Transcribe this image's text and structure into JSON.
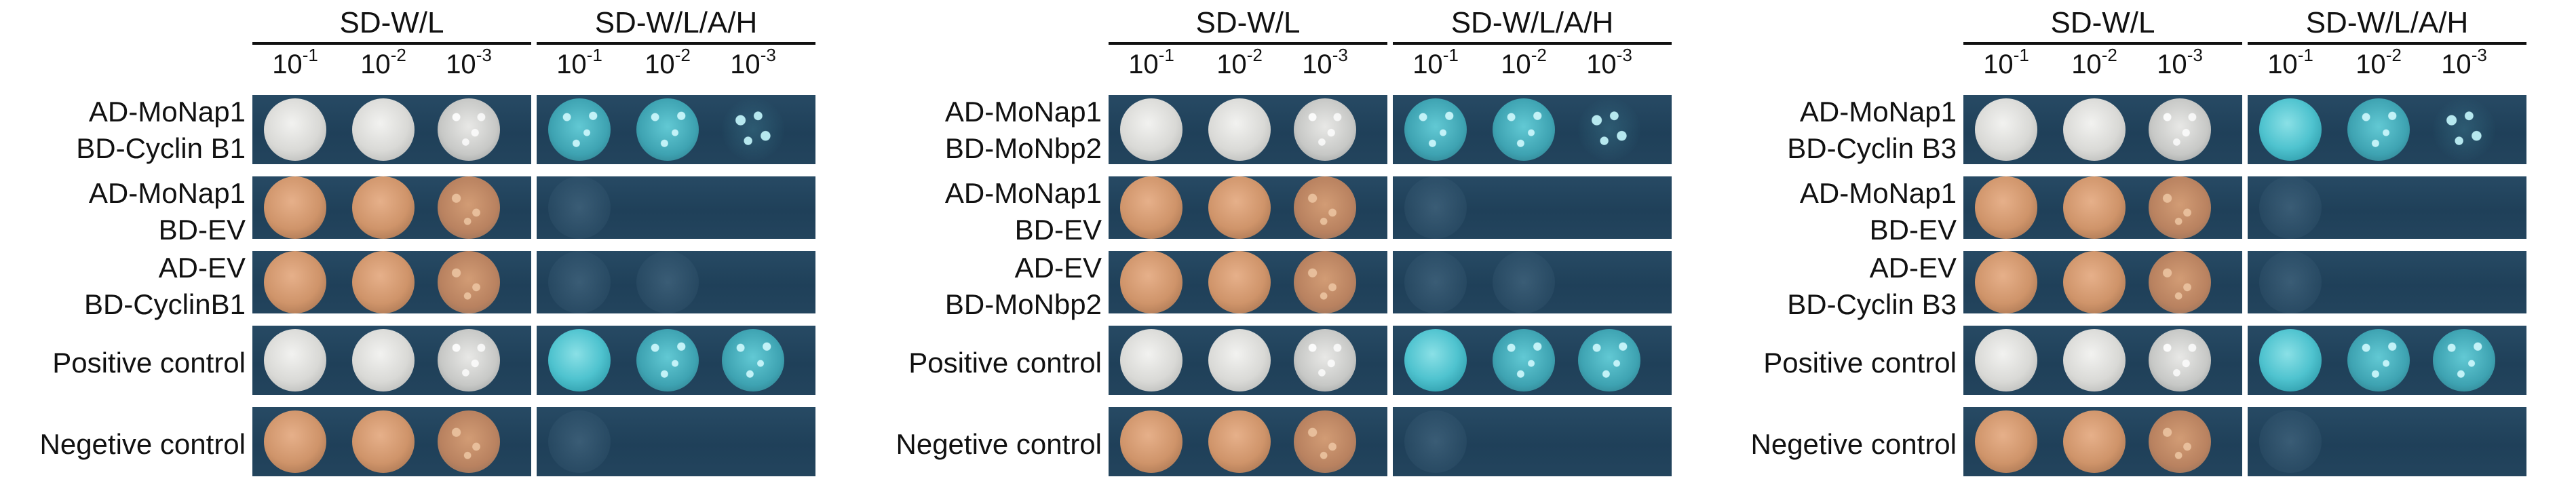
{
  "media": "SD-W/L",
  "media_selective": "SD-W/L/A/H",
  "dilutions": [
    {
      "base": "10",
      "exp": "-1"
    },
    {
      "base": "10",
      "exp": "-2"
    },
    {
      "base": "10",
      "exp": "-3"
    }
  ],
  "panels": [
    {
      "rows": [
        {
          "line1": "AD-MoNap1",
          "line2": "BD-Cyclin B1",
          "growth": [
            "white",
            "white",
            "white-grainy",
            "blue-grainy",
            "blue-grainy",
            "sparse"
          ]
        },
        {
          "line1": "AD-MoNap1",
          "line2": "BD-EV",
          "growth": [
            "tan",
            "tan",
            "tan-grainy",
            "faint",
            "none",
            "none"
          ]
        },
        {
          "line1": "AD-EV",
          "line2": "BD-CyclinB1",
          "growth": [
            "tan",
            "tan",
            "tan-grainy",
            "faint",
            "faint",
            "none"
          ]
        },
        {
          "line1": "Positive control",
          "line2": "",
          "growth": [
            "white",
            "white",
            "white-grainy",
            "blue",
            "blue-grainy",
            "blue-grainy"
          ]
        },
        {
          "line1": "Negetive control",
          "line2": "",
          "growth": [
            "tan",
            "tan",
            "tan-grainy",
            "faint",
            "none",
            "none"
          ]
        }
      ]
    },
    {
      "rows": [
        {
          "line1": "AD-MoNap1",
          "line2": "BD-MoNbp2",
          "growth": [
            "white",
            "white",
            "white-grainy",
            "blue-grainy",
            "blue-grainy",
            "sparse"
          ]
        },
        {
          "line1": "AD-MoNap1",
          "line2": "BD-EV",
          "growth": [
            "tan",
            "tan",
            "tan-grainy",
            "faint",
            "none",
            "none"
          ]
        },
        {
          "line1": "AD-EV",
          "line2": "BD-MoNbp2",
          "growth": [
            "tan",
            "tan",
            "tan-grainy",
            "faint",
            "faint",
            "none"
          ]
        },
        {
          "line1": "Positive control",
          "line2": "",
          "growth": [
            "white",
            "white",
            "white-grainy",
            "blue",
            "blue-grainy",
            "blue-grainy"
          ]
        },
        {
          "line1": "Negetive control",
          "line2": "",
          "growth": [
            "tan",
            "tan",
            "tan-grainy",
            "faint",
            "none",
            "none"
          ]
        }
      ]
    },
    {
      "rows": [
        {
          "line1": "AD-MoNap1",
          "line2": "BD-Cyclin B3",
          "growth": [
            "white",
            "white",
            "white-grainy",
            "blue",
            "blue-grainy",
            "sparse"
          ]
        },
        {
          "line1": "AD-MoNap1",
          "line2": "BD-EV",
          "growth": [
            "tan",
            "tan",
            "tan-grainy",
            "faint",
            "none",
            "none"
          ]
        },
        {
          "line1": "AD-EV",
          "line2": "BD-Cyclin B3",
          "growth": [
            "tan",
            "tan",
            "tan-grainy",
            "faint",
            "none",
            "none"
          ]
        },
        {
          "line1": "Positive control",
          "line2": "",
          "growth": [
            "white",
            "white",
            "white-grainy",
            "blue",
            "blue-grainy",
            "blue-grainy"
          ]
        },
        {
          "line1": "Negetive control",
          "line2": "",
          "growth": [
            "tan",
            "tan",
            "tan-grainy",
            "faint",
            "none",
            "none"
          ]
        }
      ]
    }
  ]
}
